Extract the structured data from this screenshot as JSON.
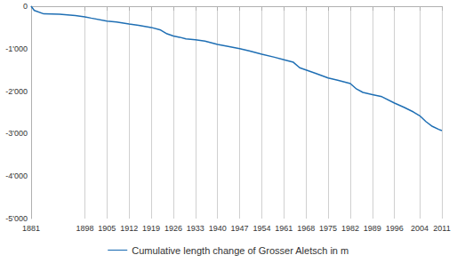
{
  "chart_data": {
    "type": "line",
    "series": [
      {
        "name": "Cumulative length change of Grosser Aletsch in m",
        "color": "#1f6fb4",
        "x": [
          1881,
          1882,
          1885,
          1890,
          1895,
          1898,
          1900,
          1905,
          1908,
          1912,
          1915,
          1919,
          1922,
          1924,
          1926,
          1928,
          1930,
          1933,
          1936,
          1940,
          1943,
          1947,
          1950,
          1954,
          1958,
          1961,
          1964,
          1966,
          1968,
          1971,
          1975,
          1978,
          1982,
          1984,
          1986,
          1989,
          1992,
          1996,
          1999,
          2002,
          2004,
          2006,
          2008,
          2010,
          2011
        ],
        "values": [
          0,
          -100,
          -180,
          -190,
          -220,
          -250,
          -280,
          -350,
          -370,
          -420,
          -450,
          -500,
          -560,
          -650,
          -700,
          -730,
          -770,
          -790,
          -820,
          -900,
          -940,
          -1000,
          -1050,
          -1130,
          -1200,
          -1260,
          -1320,
          -1450,
          -1500,
          -1580,
          -1690,
          -1740,
          -1820,
          -1950,
          -2030,
          -2080,
          -2130,
          -2280,
          -2380,
          -2490,
          -2580,
          -2720,
          -2830,
          -2900,
          -2930
        ]
      }
    ],
    "xlim": [
      1881,
      2011
    ],
    "xticks": [
      1881,
      1898,
      1905,
      1912,
      1919,
      1926,
      1933,
      1940,
      1947,
      1954,
      1961,
      1968,
      1975,
      1982,
      1989,
      1996,
      2004,
      2011
    ],
    "ylim": [
      -5000,
      0
    ],
    "yticks": [
      {
        "value": -5000,
        "label": "-5'000"
      },
      {
        "value": -4000,
        "label": "-4'000"
      },
      {
        "value": -3000,
        "label": "-3'000"
      },
      {
        "value": -2000,
        "label": "-2'000"
      },
      {
        "value": -1000,
        "label": "-1'000"
      },
      0
    ],
    "grid": true,
    "legend": "bottom"
  }
}
